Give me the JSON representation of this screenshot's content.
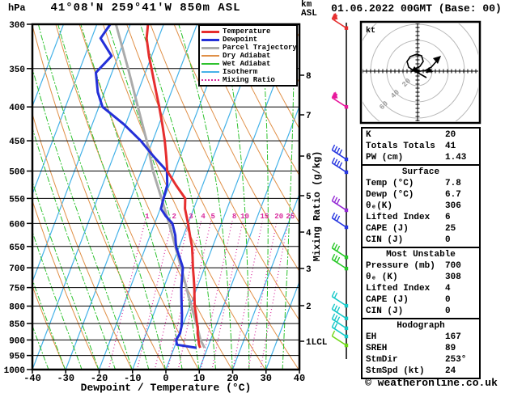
{
  "header": {
    "pressure_unit": "hPa",
    "station": "41°08'N 259°41'W 850m ASL",
    "datetime": "01.06.2022 00GMT (Base: 00)",
    "altitude_unit_line1": "km",
    "altitude_unit_line2": "ASL"
  },
  "legend": {
    "items": [
      {
        "label": "Temperature",
        "color": "#e62e2e",
        "weight": 3,
        "dotted": false
      },
      {
        "label": "Dewpoint",
        "color": "#2430d8",
        "weight": 3,
        "dotted": false
      },
      {
        "label": "Parcel Trajectory",
        "color": "#ababab",
        "weight": 3,
        "dotted": false
      },
      {
        "label": "Dry Adiabat",
        "color": "#e09048",
        "weight": 2,
        "dotted": false
      },
      {
        "label": "Wet Adiabat",
        "color": "#2ec22e",
        "weight": 2,
        "dotted": false
      },
      {
        "label": "Isotherm",
        "color": "#45b2e8",
        "weight": 2,
        "dotted": false
      },
      {
        "label": "Mixing Ratio",
        "color": "#d8289c",
        "weight": 2,
        "dotted": true
      }
    ]
  },
  "axes": {
    "pressure_ticks": [
      300,
      350,
      400,
      450,
      500,
      550,
      600,
      650,
      700,
      750,
      800,
      850,
      900,
      950,
      1000
    ],
    "temp_ticks": [
      -40,
      -30,
      -20,
      -10,
      0,
      10,
      20,
      30,
      40
    ],
    "xlabel": "Dewpoint / Temperature (°C)",
    "km_ticks": [
      8,
      7,
      6,
      5,
      4,
      3,
      2,
      1
    ],
    "lcl": "LCL",
    "mixing_ratio_label": "Mixing Ratio (g/kg)"
  },
  "hodograph": {
    "unit": "kt",
    "labeled_rings": [
      20,
      40,
      60
    ]
  },
  "table": {
    "sections": [
      {
        "title": "",
        "rows": [
          {
            "label": "K",
            "value": "20"
          },
          {
            "label": "Totals Totals",
            "value": "41"
          },
          {
            "label": "PW (cm)",
            "value": "1.43"
          }
        ]
      },
      {
        "title": "Surface",
        "rows": [
          {
            "label": "Temp (°C)",
            "value": "7.8"
          },
          {
            "label": "Dewp (°C)",
            "value": "6.7"
          },
          {
            "label": "θₑ(K)",
            "value": "306"
          },
          {
            "label": "Lifted Index",
            "value": "6"
          },
          {
            "label": "CAPE (J)",
            "value": "25"
          },
          {
            "label": "CIN (J)",
            "value": "0"
          }
        ]
      },
      {
        "title": "Most Unstable",
        "rows": [
          {
            "label": "Pressure (mb)",
            "value": "700"
          },
          {
            "label": "θₑ (K)",
            "value": "308"
          },
          {
            "label": "Lifted Index",
            "value": "4"
          },
          {
            "label": "CAPE (J)",
            "value": "0"
          },
          {
            "label": "CIN (J)",
            "value": "0"
          }
        ]
      },
      {
        "title": "Hodograph",
        "rows": [
          {
            "label": "EH",
            "value": "167"
          },
          {
            "label": "SREH",
            "value": "89"
          },
          {
            "label": "StmDir",
            "value": "253°"
          },
          {
            "label": "StmSpd (kt)",
            "value": "24"
          }
        ]
      }
    ]
  },
  "footer": "© weatheronline.co.uk",
  "chart_data": {
    "type": "skewt_logp_sounding",
    "pressure_range_hpa": [
      300,
      1000
    ],
    "temp_range_c": [
      -40,
      40
    ],
    "surface_pressure_hpa": 925,
    "pressure_hpa": [
      925,
      915,
      900,
      880,
      860,
      850,
      825,
      800,
      775,
      750,
      725,
      700,
      675,
      650,
      625,
      600,
      585,
      570,
      550,
      525,
      500,
      475,
      450,
      425,
      400,
      380,
      355,
      335,
      315,
      300
    ],
    "temperature_c": [
      7.8,
      7.1,
      6.4,
      5.4,
      4.7,
      4.1,
      2.8,
      1.4,
      0.3,
      -0.8,
      -2.1,
      -3.5,
      -4.8,
      -6.2,
      -8.1,
      -10.0,
      -11.3,
      -12.6,
      -13.7,
      -18.0,
      -22.2,
      -24.2,
      -26.4,
      -29.0,
      -31.9,
      -34.5,
      -37.9,
      -40.8,
      -43.5,
      -44.7
    ],
    "dewpoint_c": [
      6.7,
      0.5,
      -0.3,
      0.1,
      -0.2,
      -0.5,
      -1.4,
      -2.5,
      -3.6,
      -4.7,
      -5.6,
      -6.5,
      -8.7,
      -11.0,
      -12.5,
      -14.7,
      -17.5,
      -19.8,
      -20.2,
      -20.6,
      -22.3,
      -28.0,
      -33.6,
      -40.5,
      -48.9,
      -52.0,
      -54.8,
      -52.0,
      -57.3,
      -56.0
    ],
    "parcel": {
      "pressure_hpa": [
        925,
        900,
        850,
        800,
        750,
        700,
        650,
        600,
        550,
        500,
        450,
        400,
        350,
        300
      ],
      "temperature_c": [
        9.1,
        7.0,
        3.9,
        0.4,
        -3.2,
        -7.0,
        -11.2,
        -15.7,
        -20.8,
        -26.5,
        -31.8,
        -38.3,
        -45.6,
        -54.3
      ]
    },
    "lcl_km": 1,
    "isotherm_step_c": 10,
    "dry_adiabat_step_k": 10,
    "wet_adiabat_step_c": 5,
    "mixing_ratio_gkg": [
      1,
      2,
      3,
      4,
      5,
      8,
      10,
      15,
      20,
      25
    ],
    "wind_barbs": [
      {
        "pressure_hpa": 304,
        "color": "#e62e2e",
        "flag": true,
        "ticks": 2
      },
      {
        "pressure_hpa": 400,
        "color": "#e8189c",
        "flag": true,
        "ticks": 2
      },
      {
        "pressure_hpa": 480,
        "color": "#2838e0",
        "flag": false,
        "ticks": 4
      },
      {
        "pressure_hpa": 502,
        "color": "#2838e0",
        "flag": false,
        "ticks": 4
      },
      {
        "pressure_hpa": 573,
        "color": "#9428d4",
        "flag": false,
        "ticks": 3
      },
      {
        "pressure_hpa": 608,
        "color": "#2838e0",
        "flag": false,
        "ticks": 3
      },
      {
        "pressure_hpa": 675,
        "color": "#28c828",
        "flag": false,
        "ticks": 3
      },
      {
        "pressure_hpa": 702,
        "color": "#28c828",
        "flag": false,
        "ticks": 3
      },
      {
        "pressure_hpa": 799,
        "color": "#18c8c8",
        "flag": false,
        "ticks": 2
      },
      {
        "pressure_hpa": 835,
        "color": "#18c8c8",
        "flag": false,
        "ticks": 3
      },
      {
        "pressure_hpa": 864,
        "color": "#18c8c8",
        "flag": false,
        "ticks": 3
      },
      {
        "pressure_hpa": 889,
        "color": "#18c8c8",
        "flag": false,
        "ticks": 2
      },
      {
        "pressure_hpa": 917,
        "color": "#70d818",
        "flag": false,
        "ticks": 1
      }
    ],
    "colors": {
      "temperature": "#e62e2e",
      "dewpoint": "#2430d8",
      "parcel": "#ababab",
      "dry_adiabat": "#e09048",
      "wet_adiabat": "#2ec22e",
      "isotherm": "#45b2e8",
      "mixing_ratio": "#d8289c",
      "hodograph_rings": "#b8b8b8"
    }
  }
}
